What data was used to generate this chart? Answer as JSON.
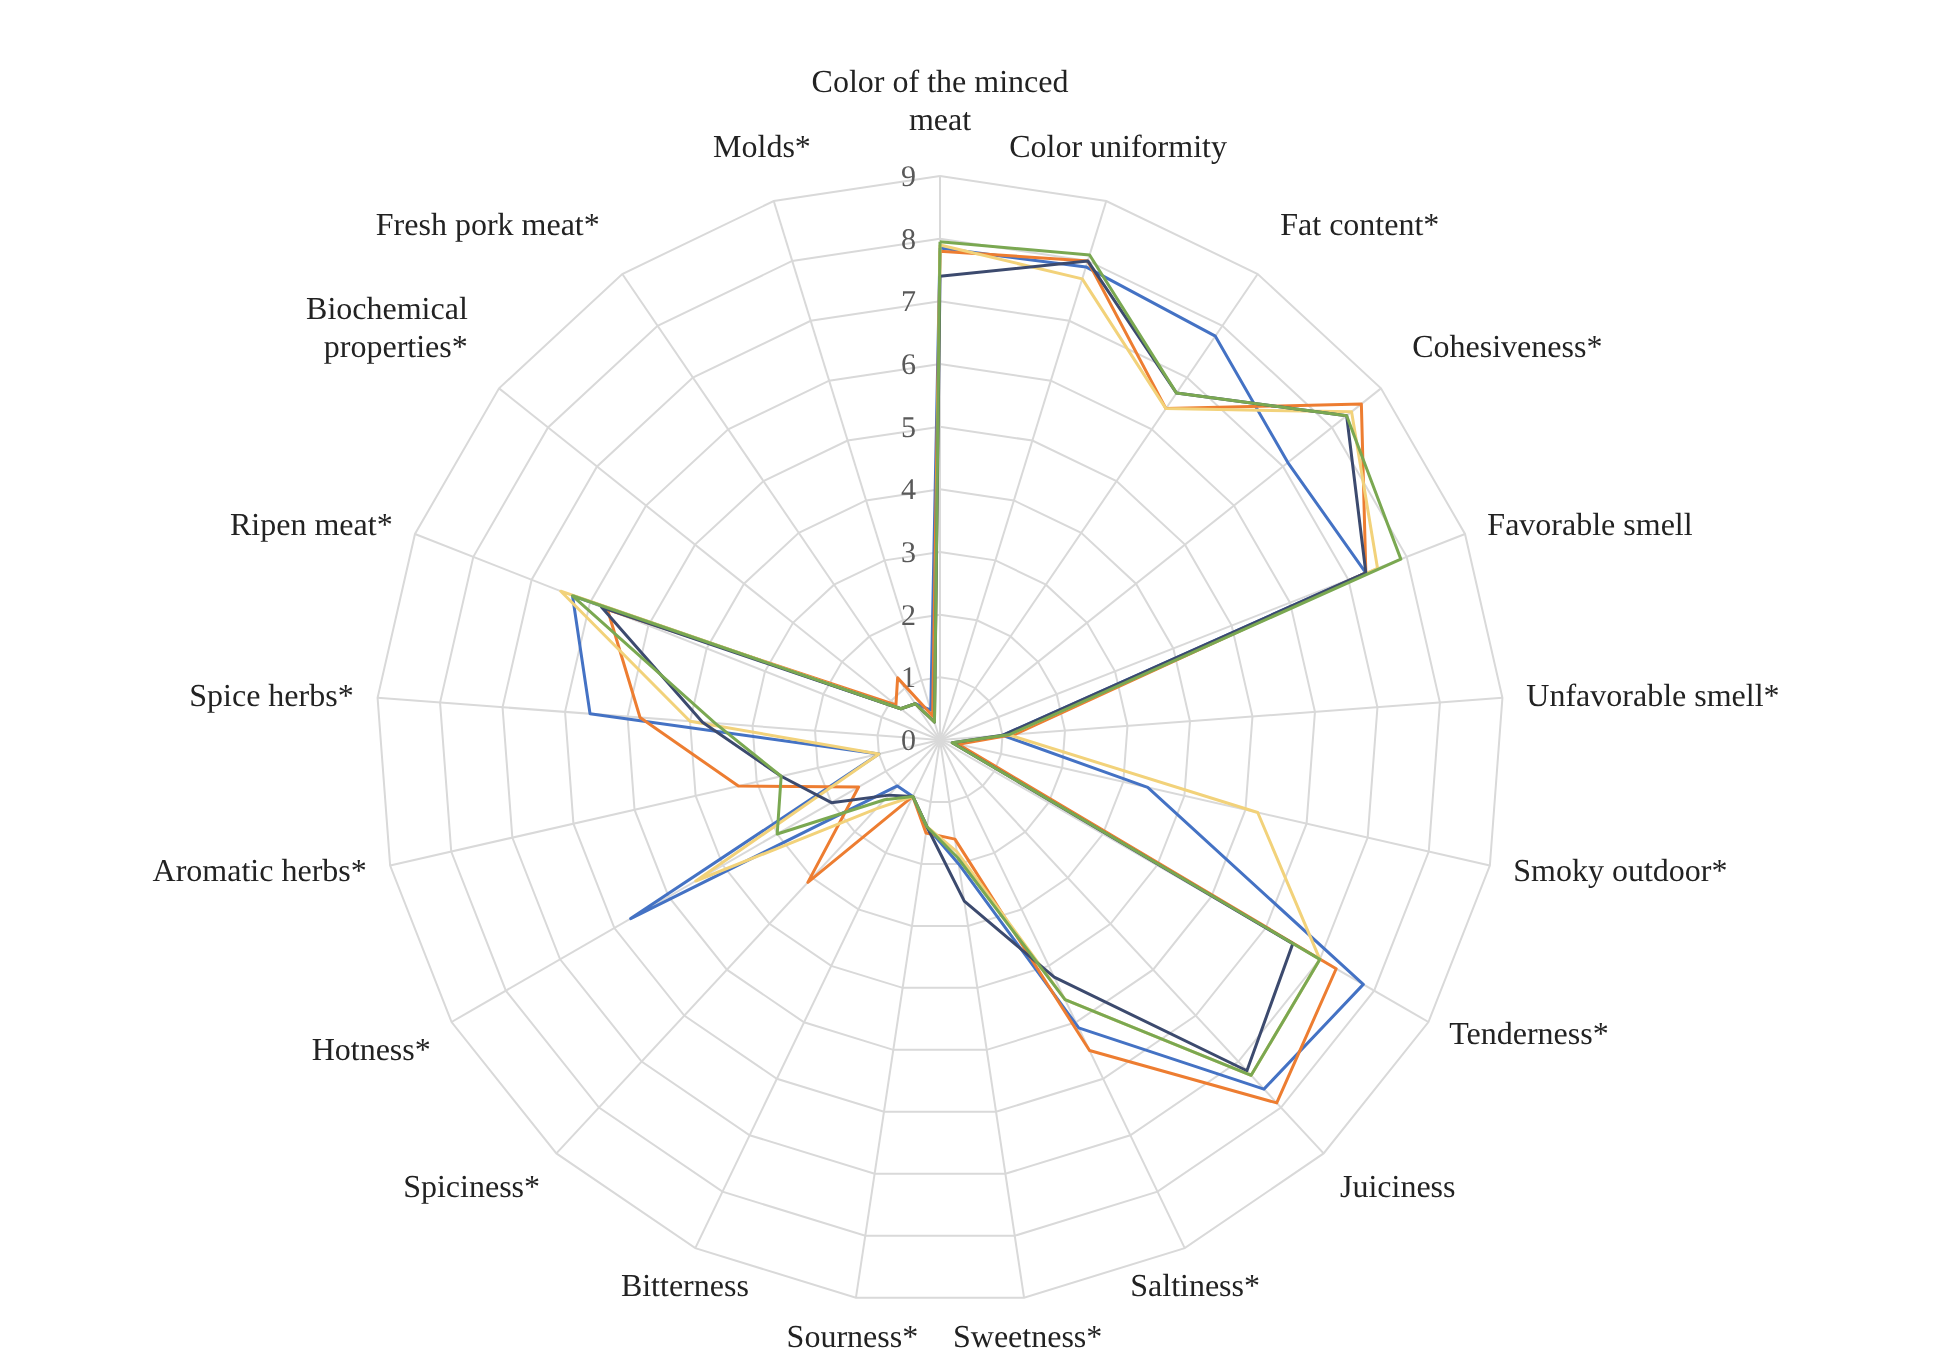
{
  "chart_data": {
    "type": "radar",
    "categories": [
      "Color of the minced meat",
      "Color uniformity",
      "Fat content*",
      "Cohesiveness*",
      "Favorable smell",
      "Unfavorable smell*",
      "Smoky outdoor*",
      "Tenderness*",
      "Juiciness",
      "Saltiness*",
      "Sweetness*",
      "Sourness*",
      "Bitterness",
      "Spiciness*",
      "Hotness*",
      "Aromatic herbs*",
      "Spice herbs*",
      "Ripen meat*",
      "Biochemical properties*",
      "Fresh pork meat*",
      "Molds*"
    ],
    "series": [
      {
        "color": "#4472c4",
        "values": [
          7.85,
          7.9,
          7.8,
          7.1,
          7.3,
          1.0,
          3.4,
          7.8,
          7.6,
          5.1,
          2.0,
          1.4,
          1.0,
          1.0,
          5.7,
          1.0,
          5.6,
          6.3,
          0.8,
          0.7,
          0.5
        ]
      },
      {
        "color": "#ed7d31",
        "values": [
          7.8,
          8.0,
          6.4,
          8.6,
          7.3,
          1.2,
          0.3,
          7.3,
          7.9,
          5.5,
          1.6,
          1.5,
          1.0,
          3.1,
          1.5,
          3.3,
          4.8,
          5.7,
          0.9,
          1.2,
          0.4
        ]
      },
      {
        "color": "#f2d27a",
        "values": [
          7.9,
          7.7,
          6.4,
          8.4,
          7.5,
          1.1,
          5.2,
          7.0,
          7.3,
          4.6,
          1.8,
          1.4,
          1.0,
          1.5,
          4.5,
          1.0,
          4.0,
          6.5,
          0.8,
          0.7,
          0.3
        ]
      },
      {
        "color": "#3c4a6e",
        "values": [
          7.4,
          8.0,
          6.7,
          8.3,
          7.3,
          1.0,
          0.2,
          6.5,
          7.2,
          4.2,
          2.6,
          1.4,
          1.0,
          1.2,
          2.0,
          2.6,
          3.8,
          5.8,
          0.8,
          0.7,
          0.3
        ]
      },
      {
        "color": "#7aa851",
        "values": [
          7.95,
          8.1,
          6.7,
          8.3,
          7.9,
          1.1,
          0.2,
          7.0,
          7.3,
          4.6,
          1.9,
          1.4,
          1.0,
          1.3,
          3.0,
          2.6,
          3.6,
          6.3,
          0.8,
          0.7,
          0.3
        ]
      }
    ],
    "ylim": [
      0,
      9
    ],
    "yticks": [
      0,
      1,
      2,
      3,
      4,
      5,
      6,
      7,
      8,
      9
    ],
    "grid": true
  }
}
